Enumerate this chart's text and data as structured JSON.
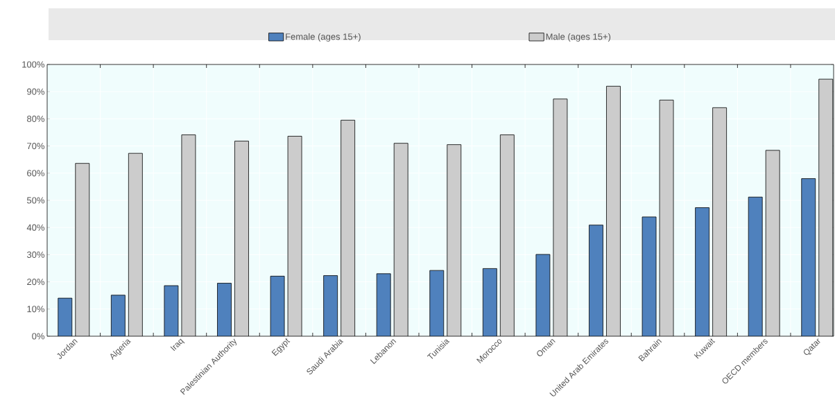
{
  "chart_data": {
    "type": "bar",
    "categories": [
      "Jordan",
      "Algeria",
      "Iraq",
      "Palestinian Authority",
      "Egypt",
      "Saudi Arabia",
      "Lebanon",
      "Tunisia",
      "Morocco",
      "Oman",
      "United Arab Emirates",
      "Bahrain",
      "Kuwait",
      "OECD members",
      "Qatar"
    ],
    "series": [
      {
        "name": "Female (ages 15+)",
        "color": "#4f81bd",
        "values": [
          14.0,
          15.1,
          18.6,
          19.5,
          22.1,
          22.3,
          23.0,
          24.2,
          24.9,
          30.1,
          40.9,
          43.9,
          47.3,
          51.2,
          58.0
        ]
      },
      {
        "name": "Male (ages 15+)",
        "color": "#cccccc",
        "values": [
          63.6,
          67.3,
          74.1,
          71.8,
          73.6,
          79.5,
          71.0,
          70.5,
          74.1,
          87.3,
          92.0,
          86.9,
          84.1,
          68.4,
          94.6
        ]
      }
    ],
    "ylim": [
      0,
      100
    ],
    "yticks": [
      {
        "value": 0,
        "label": "0%"
      },
      {
        "value": 10,
        "label": "10%"
      },
      {
        "value": 20,
        "label": "20%"
      },
      {
        "value": 30,
        "label": "30%"
      },
      {
        "value": 40,
        "label": "40%"
      },
      {
        "value": 50,
        "label": "50%"
      },
      {
        "value": 60,
        "label": "60%"
      },
      {
        "value": 70,
        "label": "70%"
      },
      {
        "value": 80,
        "label": "80%"
      },
      {
        "value": 90,
        "label": "90%"
      },
      {
        "value": 100,
        "label": "100%"
      }
    ],
    "grid": true,
    "legend": "top"
  }
}
